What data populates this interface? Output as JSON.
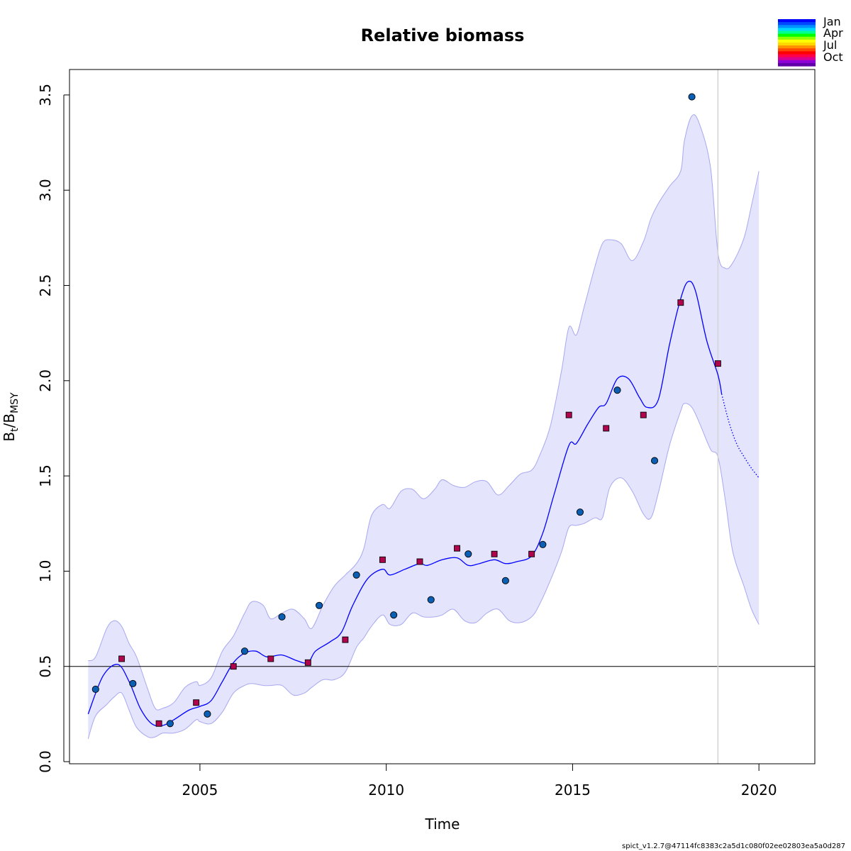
{
  "chart_data": {
    "type": "line",
    "title": "Relative biomass",
    "xlabel": "Time",
    "ylabel_main": "B",
    "ylabel_sub_t": "t",
    "ylabel_slash": "/B",
    "ylabel_sub_msy": "MSY",
    "xlim": [
      2001.5,
      2021.5
    ],
    "ylim": [
      0,
      3.6
    ],
    "x_ticks": [
      2005,
      2010,
      2015,
      2020
    ],
    "x_tick_labels": [
      "2005",
      "2010",
      "2015",
      "2020"
    ],
    "y_ticks": [
      0,
      0.5,
      1,
      1.5,
      2,
      2.5,
      3,
      3.5
    ],
    "y_tick_labels": [
      "0.0",
      "0.5",
      "1.0",
      "1.5",
      "2.0",
      "2.5",
      "3.0",
      "3.5"
    ],
    "reference_line_y": 0.5,
    "vertical_line_x": 2018.9,
    "colors": {
      "line": "#0000ff",
      "ci_fill": "#e4e4fc",
      "ci_border": "#a8a8f0",
      "jan_marker": "#0a5fb5",
      "oct_marker": "#b0044f"
    },
    "series": [
      {
        "estimate": true,
        "x": [
          2002.0,
          2002.4,
          2002.8,
          2003.1,
          2003.4,
          2003.7,
          2004.0,
          2004.3,
          2004.7,
          2005.0,
          2005.3,
          2005.6,
          2005.9,
          2006.2,
          2006.5,
          2006.8,
          2007.2,
          2007.6,
          2007.9,
          2008.1,
          2008.5,
          2008.8,
          2009.1,
          2009.5,
          2009.9,
          2010.1,
          2010.5,
          2010.9,
          2011.1,
          2011.5,
          2011.9,
          2012.2,
          2012.5,
          2012.9,
          2013.2,
          2013.5,
          2013.9,
          2014.2,
          2014.5,
          2014.9,
          2015.1,
          2015.4,
          2015.7,
          2015.9,
          2016.2,
          2016.5,
          2016.8,
          2017.0,
          2017.3,
          2017.6,
          2017.9,
          2018.1,
          2018.3,
          2018.6,
          2018.9,
          2019.0
        ],
        "y": [
          0.25,
          0.45,
          0.51,
          0.42,
          0.28,
          0.2,
          0.19,
          0.22,
          0.27,
          0.29,
          0.32,
          0.42,
          0.52,
          0.57,
          0.58,
          0.55,
          0.56,
          0.53,
          0.52,
          0.58,
          0.63,
          0.68,
          0.82,
          0.96,
          1.01,
          0.98,
          1.01,
          1.04,
          1.03,
          1.06,
          1.07,
          1.03,
          1.04,
          1.06,
          1.04,
          1.05,
          1.08,
          1.2,
          1.4,
          1.66,
          1.67,
          1.77,
          1.86,
          1.88,
          2.01,
          2.01,
          1.91,
          1.86,
          1.9,
          2.19,
          2.43,
          2.52,
          2.47,
          2.21,
          2.03,
          1.93
        ]
      },
      {
        "forecast": true,
        "x": [
          2019.0,
          2019.2,
          2019.4,
          2019.6,
          2019.8,
          2020.0
        ],
        "y": [
          1.93,
          1.78,
          1.67,
          1.6,
          1.54,
          1.49
        ]
      },
      {
        "ci_upper": true,
        "x": [
          2002.0,
          2002.2,
          2002.5,
          2002.7,
          2002.9,
          2003.1,
          2003.3,
          2003.6,
          2003.8,
          2004.0,
          2004.3,
          2004.6,
          2004.9,
          2005.0,
          2005.3,
          2005.6,
          2005.9,
          2006.2,
          2006.4,
          2006.7,
          2006.9,
          2007.2,
          2007.5,
          2007.8,
          2008.0,
          2008.3,
          2008.6,
          2008.9,
          2009.2,
          2009.4,
          2009.6,
          2009.9,
          2010.1,
          2010.4,
          2010.7,
          2011.0,
          2011.3,
          2011.5,
          2011.8,
          2012.1,
          2012.4,
          2012.7,
          2013.0,
          2013.3,
          2013.6,
          2013.9,
          2014.1,
          2014.4,
          2014.7,
          2014.9,
          2015.1,
          2015.3,
          2015.6,
          2015.8,
          2016.0,
          2016.3,
          2016.6,
          2016.9,
          2017.1,
          2017.3,
          2017.6,
          2017.9,
          2018.0,
          2018.2,
          2018.4,
          2018.7,
          2018.9,
          2019.1,
          2019.3,
          2019.6,
          2019.8,
          2020.0
        ],
        "y": [
          0.53,
          0.55,
          0.7,
          0.74,
          0.71,
          0.62,
          0.55,
          0.38,
          0.28,
          0.28,
          0.31,
          0.39,
          0.42,
          0.4,
          0.44,
          0.58,
          0.66,
          0.78,
          0.84,
          0.82,
          0.75,
          0.78,
          0.8,
          0.75,
          0.7,
          0.82,
          0.92,
          0.98,
          1.04,
          1.12,
          1.29,
          1.35,
          1.33,
          1.42,
          1.43,
          1.38,
          1.43,
          1.48,
          1.45,
          1.44,
          1.47,
          1.47,
          1.4,
          1.45,
          1.51,
          1.53,
          1.6,
          1.76,
          2.05,
          2.28,
          2.24,
          2.38,
          2.6,
          2.72,
          2.74,
          2.72,
          2.63,
          2.73,
          2.85,
          2.93,
          3.02,
          3.1,
          3.26,
          3.39,
          3.35,
          3.12,
          2.67,
          2.59,
          2.62,
          2.75,
          2.92,
          3.1
        ]
      },
      {
        "ci_lower": true,
        "x": [
          2002.0,
          2002.2,
          2002.5,
          2002.7,
          2002.9,
          2003.1,
          2003.3,
          2003.6,
          2003.8,
          2004.0,
          2004.3,
          2004.6,
          2004.9,
          2005.0,
          2005.3,
          2005.6,
          2005.9,
          2006.2,
          2006.4,
          2006.7,
          2006.9,
          2007.2,
          2007.5,
          2007.8,
          2008.0,
          2008.3,
          2008.6,
          2008.9,
          2009.2,
          2009.4,
          2009.6,
          2009.9,
          2010.1,
          2010.4,
          2010.7,
          2011.0,
          2011.3,
          2011.5,
          2011.8,
          2012.1,
          2012.4,
          2012.7,
          2013.0,
          2013.3,
          2013.6,
          2013.9,
          2014.1,
          2014.4,
          2014.7,
          2014.9,
          2015.1,
          2015.3,
          2015.6,
          2015.8,
          2016.0,
          2016.3,
          2016.6,
          2016.9,
          2017.1,
          2017.3,
          2017.6,
          2017.9,
          2018.0,
          2018.2,
          2018.4,
          2018.7,
          2018.9,
          2019.1,
          2019.3,
          2019.6,
          2019.8,
          2020.0
        ],
        "y": [
          0.12,
          0.24,
          0.3,
          0.34,
          0.36,
          0.27,
          0.18,
          0.13,
          0.13,
          0.15,
          0.15,
          0.17,
          0.22,
          0.21,
          0.2,
          0.26,
          0.36,
          0.4,
          0.41,
          0.4,
          0.4,
          0.4,
          0.35,
          0.36,
          0.39,
          0.43,
          0.43,
          0.47,
          0.6,
          0.65,
          0.71,
          0.77,
          0.72,
          0.72,
          0.78,
          0.76,
          0.76,
          0.77,
          0.8,
          0.74,
          0.73,
          0.78,
          0.8,
          0.74,
          0.73,
          0.76,
          0.82,
          0.95,
          1.1,
          1.23,
          1.24,
          1.25,
          1.28,
          1.28,
          1.44,
          1.49,
          1.42,
          1.3,
          1.28,
          1.41,
          1.66,
          1.84,
          1.88,
          1.86,
          1.78,
          1.64,
          1.6,
          1.37,
          1.1,
          0.92,
          0.8,
          0.72
        ]
      }
    ],
    "observations": [
      {
        "x": 2002.2,
        "y": 0.38,
        "q": "jan"
      },
      {
        "x": 2002.9,
        "y": 0.54,
        "q": "oct"
      },
      {
        "x": 2003.2,
        "y": 0.41,
        "q": "jan"
      },
      {
        "x": 2003.9,
        "y": 0.2,
        "q": "oct"
      },
      {
        "x": 2004.2,
        "y": 0.2,
        "q": "jan"
      },
      {
        "x": 2004.9,
        "y": 0.31,
        "q": "oct"
      },
      {
        "x": 2005.2,
        "y": 0.25,
        "q": "jan"
      },
      {
        "x": 2005.9,
        "y": 0.5,
        "q": "oct"
      },
      {
        "x": 2006.2,
        "y": 0.58,
        "q": "jan"
      },
      {
        "x": 2006.9,
        "y": 0.54,
        "q": "oct"
      },
      {
        "x": 2007.2,
        "y": 0.76,
        "q": "jan"
      },
      {
        "x": 2007.9,
        "y": 0.52,
        "q": "oct"
      },
      {
        "x": 2008.2,
        "y": 0.82,
        "q": "jan"
      },
      {
        "x": 2008.9,
        "y": 0.64,
        "q": "oct"
      },
      {
        "x": 2009.2,
        "y": 0.98,
        "q": "jan"
      },
      {
        "x": 2009.9,
        "y": 1.06,
        "q": "oct"
      },
      {
        "x": 2010.2,
        "y": 0.77,
        "q": "jan"
      },
      {
        "x": 2010.9,
        "y": 1.05,
        "q": "oct"
      },
      {
        "x": 2011.2,
        "y": 0.85,
        "q": "jan"
      },
      {
        "x": 2011.9,
        "y": 1.12,
        "q": "oct"
      },
      {
        "x": 2012.2,
        "y": 1.09,
        "q": "jan"
      },
      {
        "x": 2012.9,
        "y": 1.09,
        "q": "oct"
      },
      {
        "x": 2013.2,
        "y": 0.95,
        "q": "jan"
      },
      {
        "x": 2013.9,
        "y": 1.09,
        "q": "oct"
      },
      {
        "x": 2014.2,
        "y": 1.14,
        "q": "jan"
      },
      {
        "x": 2014.9,
        "y": 1.82,
        "q": "oct"
      },
      {
        "x": 2015.2,
        "y": 1.31,
        "q": "jan"
      },
      {
        "x": 2015.9,
        "y": 1.75,
        "q": "oct"
      },
      {
        "x": 2016.2,
        "y": 1.95,
        "q": "jan"
      },
      {
        "x": 2016.9,
        "y": 1.82,
        "q": "oct"
      },
      {
        "x": 2017.2,
        "y": 1.58,
        "q": "jan"
      },
      {
        "x": 2017.9,
        "y": 2.41,
        "q": "oct"
      },
      {
        "x": 2018.2,
        "y": 3.49,
        "q": "jan"
      },
      {
        "x": 2018.9,
        "y": 2.09,
        "q": "oct"
      }
    ],
    "legend": {
      "placement": "top-right",
      "labels": [
        "Jan",
        "Apr",
        "Jul",
        "Oct"
      ],
      "gradient_colors": [
        "#0000ff",
        "#0048ff",
        "#0090ff",
        "#00d8ff",
        "#00ff90",
        "#00ff00",
        "#90ff00",
        "#ffff00",
        "#ffd800",
        "#ff9000",
        "#ff4800",
        "#ff0000",
        "#ff0048",
        "#d80090",
        "#9000d8",
        "#6000a8"
      ]
    },
    "footer": "spict_v1.2.7@47114fc8383c2a5d1c080f02ee02803ea5a0d287"
  }
}
